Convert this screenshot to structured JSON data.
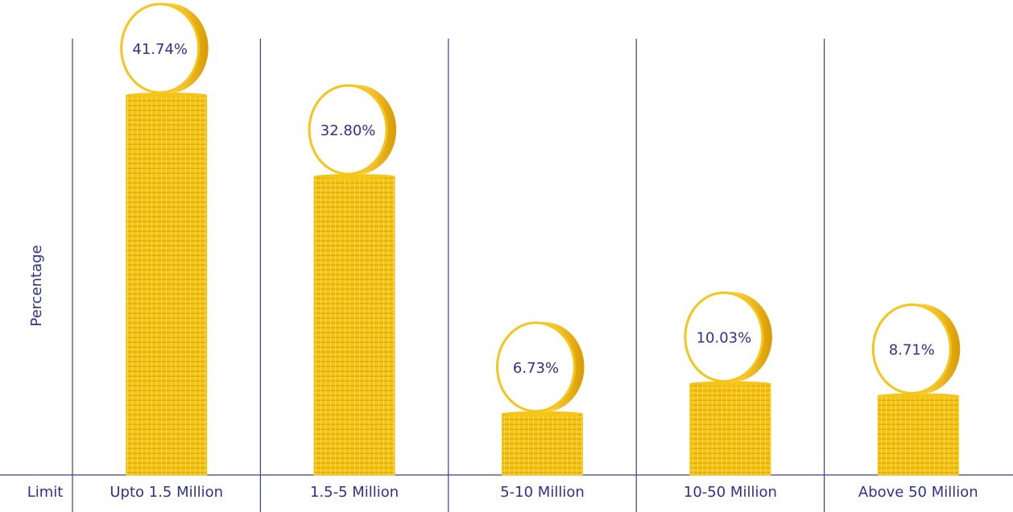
{
  "chart_data": {
    "type": "bar",
    "x_label": "Limit",
    "y_label": "Percentage",
    "categories": [
      "Upto 1.5 Million",
      "1.5-5 Million",
      "5-10 Million",
      "10-50 Million",
      "Above 50 Million"
    ],
    "values": [
      41.74,
      32.8,
      6.73,
      10.03,
      8.71
    ],
    "value_labels": [
      "41.74%",
      "32.80%",
      "6.73%",
      "10.03%",
      "8.71%"
    ],
    "color": "#f5c518"
  }
}
